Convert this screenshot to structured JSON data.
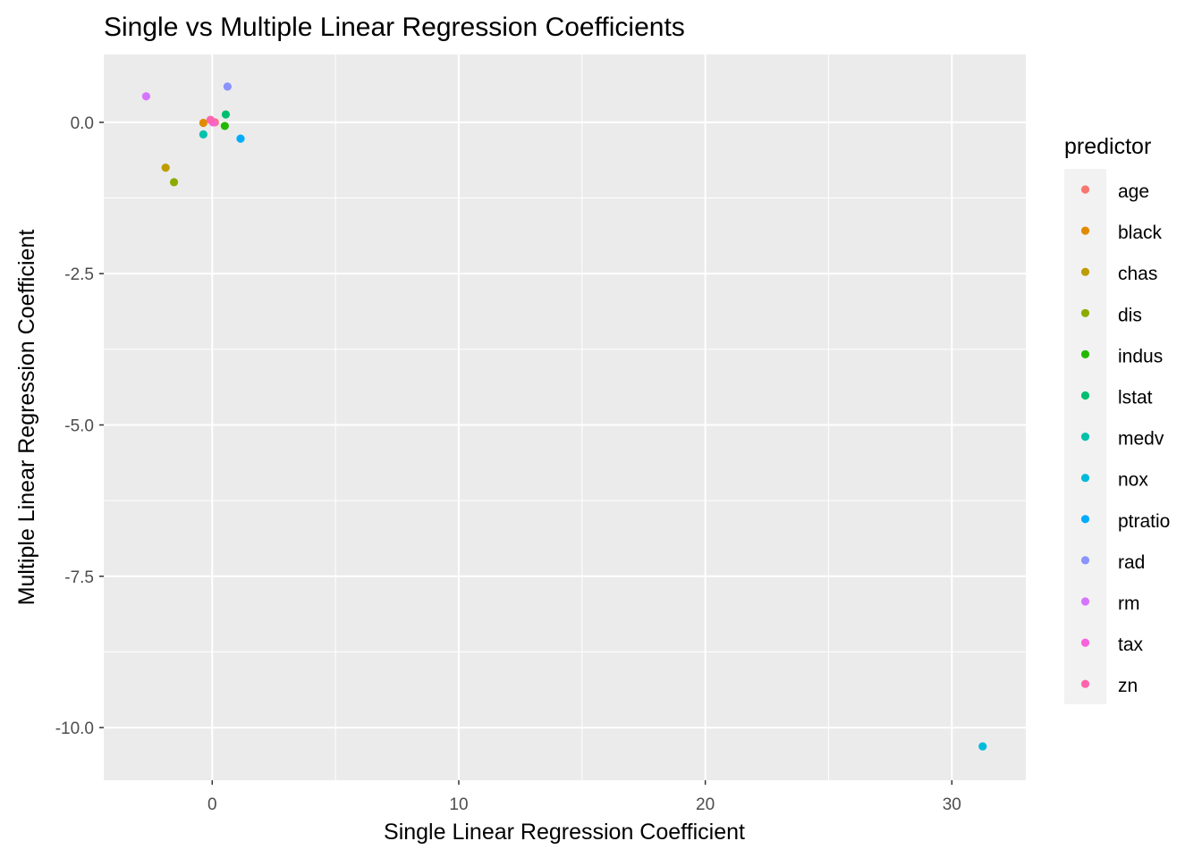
{
  "chart_data": {
    "type": "scatter",
    "title": "Single vs Multiple Linear Regression Coefficients",
    "xlabel": "Single Linear Regression Coefficient",
    "ylabel": "Multiple Linear Regression Coefficient",
    "xlim": [
      -4.4,
      33.0
    ],
    "ylim": [
      -10.87,
      1.12
    ],
    "x_ticks": [
      {
        "value": 0,
        "label": "0"
      },
      {
        "value": 10,
        "label": "10"
      },
      {
        "value": 20,
        "label": "20"
      },
      {
        "value": 30,
        "label": "30"
      }
    ],
    "y_ticks": [
      {
        "value": 0,
        "label": "0.0"
      },
      {
        "value": -2.5,
        "label": "-2.5"
      },
      {
        "value": -5,
        "label": "-5.0"
      },
      {
        "value": -7.5,
        "label": "-7.5"
      },
      {
        "value": -10,
        "label": "-10.0"
      }
    ],
    "grid": true,
    "legend": {
      "title": "predictor",
      "position": "right"
    },
    "series": [
      {
        "name": "age",
        "color": "#F8766D",
        "points": [
          {
            "x": 0.11,
            "y": 0.0
          }
        ]
      },
      {
        "name": "black",
        "color": "#E18A00",
        "points": [
          {
            "x": -0.36,
            "y": -0.01
          }
        ]
      },
      {
        "name": "chas",
        "color": "#BE9C00",
        "points": [
          {
            "x": -1.89,
            "y": -0.75
          }
        ]
      },
      {
        "name": "dis",
        "color": "#8CAB00",
        "points": [
          {
            "x": -1.55,
            "y": -0.99
          }
        ]
      },
      {
        "name": "indus",
        "color": "#24B700",
        "points": [
          {
            "x": 0.51,
            "y": -0.06
          }
        ]
      },
      {
        "name": "lstat",
        "color": "#00BE70",
        "points": [
          {
            "x": 0.55,
            "y": 0.13
          }
        ]
      },
      {
        "name": "medv",
        "color": "#00C1AB",
        "points": [
          {
            "x": -0.36,
            "y": -0.2
          }
        ]
      },
      {
        "name": "nox",
        "color": "#00BBDA",
        "points": [
          {
            "x": 31.25,
            "y": -10.31
          }
        ]
      },
      {
        "name": "ptratio",
        "color": "#00ACFC",
        "points": [
          {
            "x": 1.15,
            "y": -0.27
          }
        ]
      },
      {
        "name": "rad",
        "color": "#8B93FF",
        "points": [
          {
            "x": 0.62,
            "y": 0.59
          }
        ]
      },
      {
        "name": "rm",
        "color": "#D575FE",
        "points": [
          {
            "x": -2.68,
            "y": 0.43
          }
        ]
      },
      {
        "name": "tax",
        "color": "#F962DD",
        "points": [
          {
            "x": 0.03,
            "y": 0.0
          }
        ]
      },
      {
        "name": "zn",
        "color": "#FF65AC",
        "points": [
          {
            "x": -0.07,
            "y": 0.04
          }
        ]
      }
    ]
  }
}
